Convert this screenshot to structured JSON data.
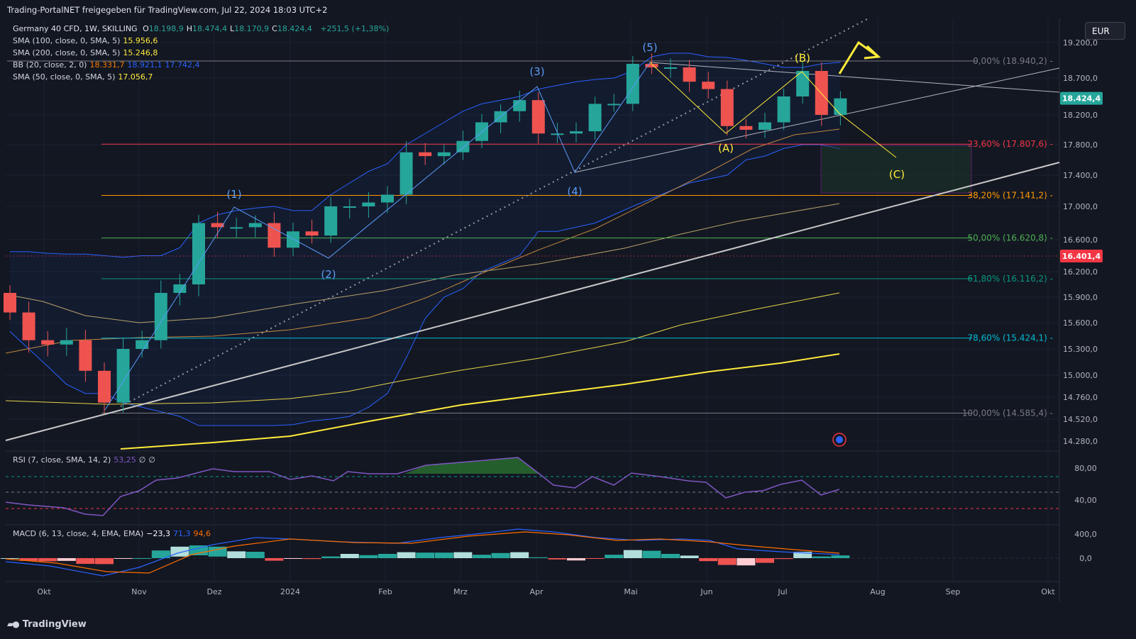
{
  "header": {
    "title": "Trading-PortalNET freigegeben für TradingView.com, Jul 22, 2024 18:03 UTC+2"
  },
  "currency_button": {
    "label": "EUR"
  },
  "legend": {
    "symbol": "Germany 40 CFD, 1W, SKILLING",
    "ohlc": [
      {
        "k": "O",
        "v": "18.198,9"
      },
      {
        "k": "H",
        "v": "18.474,4"
      },
      {
        "k": "L",
        "v": "18.170,9"
      },
      {
        "k": "C",
        "v": "18.424,4"
      }
    ],
    "change": "+251,5 (+1,38%)",
    "indicators": [
      {
        "label": "SMA (100, close, 0, SMA, 5)",
        "values": [
          "15.956,6"
        ],
        "colors": [
          "#ffeb3b"
        ]
      },
      {
        "label": "SMA (200, close, 0, SMA, 5)",
        "values": [
          "15.246,8"
        ],
        "colors": [
          "#ffeb3b"
        ]
      },
      {
        "label": "BB (20, close, 2, 0)",
        "values": [
          "18.331,7",
          "18.921,1",
          "17.742,4"
        ],
        "colors": [
          "#f57c00",
          "#2962ff",
          "#2962ff"
        ]
      },
      {
        "label": "SMA (50, close, 0, SMA, 5)",
        "values": [
          "17.056,7"
        ],
        "colors": [
          "#ffeb3b"
        ]
      }
    ],
    "rsi": {
      "label": "RSI (7, close, SMA, 14, 2)",
      "values": [
        "53,25",
        "∅",
        "∅"
      ],
      "colors": [
        "#7e57c2",
        "#d1d4dc",
        "#d1d4dc"
      ]
    },
    "macd": {
      "label": "MACD (6, 13, close, 4, EMA, EMA)",
      "values": [
        "−23,3",
        "71,3",
        "94,6"
      ],
      "colors": [
        "#ffffff",
        "#2962ff",
        "#ff6d00"
      ]
    }
  },
  "price_axis": {
    "ticks": [
      "19.200,0",
      "18.700,0",
      "18.200,0",
      "17.800,0",
      "17.400,0",
      "17.000,0",
      "16.600,0",
      "16.200,0",
      "15.900,0",
      "15.600,0",
      "15.300,0",
      "15.000,0",
      "14.760,0",
      "14.520,0",
      "14.280,0"
    ],
    "current_price": "18.424,4",
    "marker_price": "16.401,4"
  },
  "rsi_axis": {
    "ticks": [
      "80,00",
      "40,00"
    ]
  },
  "macd_axis": {
    "ticks": [
      "400,0",
      "0,0"
    ]
  },
  "time_axis": {
    "labels": [
      "Okt",
      "Nov",
      "Dez",
      "2024",
      "Feb",
      "Mrz",
      "Apr",
      "Mai",
      "Jun",
      "Jul",
      "Aug",
      "Sep",
      "Okt"
    ]
  },
  "fibonacci": [
    {
      "label": "0,00% (18.940,2)",
      "price": 18940.2,
      "color": "#787b86"
    },
    {
      "label": "23,60% (17.807,6)",
      "price": 17807.6,
      "color": "#f23645"
    },
    {
      "label": "38,20% (17.141,2)",
      "price": 17141.2,
      "color": "#ff9800"
    },
    {
      "label": "50,00% (16.620,8)",
      "price": 16620.8,
      "color": "#4caf50"
    },
    {
      "label": "61,80% (16.116,2)",
      "price": 16116.2,
      "color": "#089981"
    },
    {
      "label": "78,60% (15.424,1)",
      "price": 15424.1,
      "color": "#00bcd4"
    },
    {
      "label": "100,00% (14.585,4)",
      "price": 14585.4,
      "color": "#787b86"
    }
  ],
  "wave_labels": {
    "impulse": [
      "(1)",
      "(2)",
      "(3)",
      "(4)",
      "(5)"
    ],
    "correction": [
      "(A)",
      "(B)",
      "(C)"
    ]
  },
  "colors": {
    "up": "#26a69a",
    "down": "#ef5350",
    "background": "#131722",
    "grid": "#1f2330",
    "blue": "#2962ff",
    "yellow": "#ffeb3b"
  },
  "chart_data": {
    "type": "candlestick",
    "symbol": "Germany 40 CFD",
    "interval": "1W",
    "weekly_close": [
      15720,
      15400,
      15350,
      15400,
      15050,
      14700,
      15300,
      15400,
      15950,
      16050,
      16800,
      16750,
      16750,
      16800,
      16500,
      16700,
      16650,
      17000,
      17000,
      17050,
      17150,
      17700,
      17650,
      17700,
      17850,
      18100,
      18250,
      18400,
      17950,
      17950,
      17980,
      18350,
      18350,
      18900,
      18850,
      18850,
      18650,
      18550,
      18050,
      18000,
      18100,
      18450,
      18800,
      18200,
      18424.4
    ],
    "bb_upper": [
      16450,
      16450,
      16430,
      16420,
      16420,
      16400,
      16380,
      16400,
      16400,
      16500,
      16800,
      16900,
      16950,
      16980,
      17000,
      16950,
      16950,
      17150,
      17300,
      17450,
      17550,
      17800,
      17950,
      18100,
      18250,
      18350,
      18400,
      18450,
      18550,
      18600,
      18650,
      18680,
      18700,
      18800,
      19000,
      19050,
      19050,
      19000,
      18990,
      18950,
      18900,
      18850,
      18850,
      18900,
      18921.1
    ],
    "bb_lower": [
      15500,
      15300,
      15100,
      14900,
      14800,
      14800,
      14700,
      14650,
      14600,
      14550,
      14450,
      14450,
      14450,
      14450,
      14450,
      14460,
      14500,
      14520,
      14550,
      14650,
      14800,
      15200,
      15650,
      15900,
      16000,
      16200,
      16300,
      16400,
      16700,
      16700,
      16750,
      16800,
      16900,
      17000,
      17100,
      17200,
      17300,
      17350,
      17400,
      17600,
      17650,
      17750,
      17800,
      17800,
      17742.4
    ]
  }
}
